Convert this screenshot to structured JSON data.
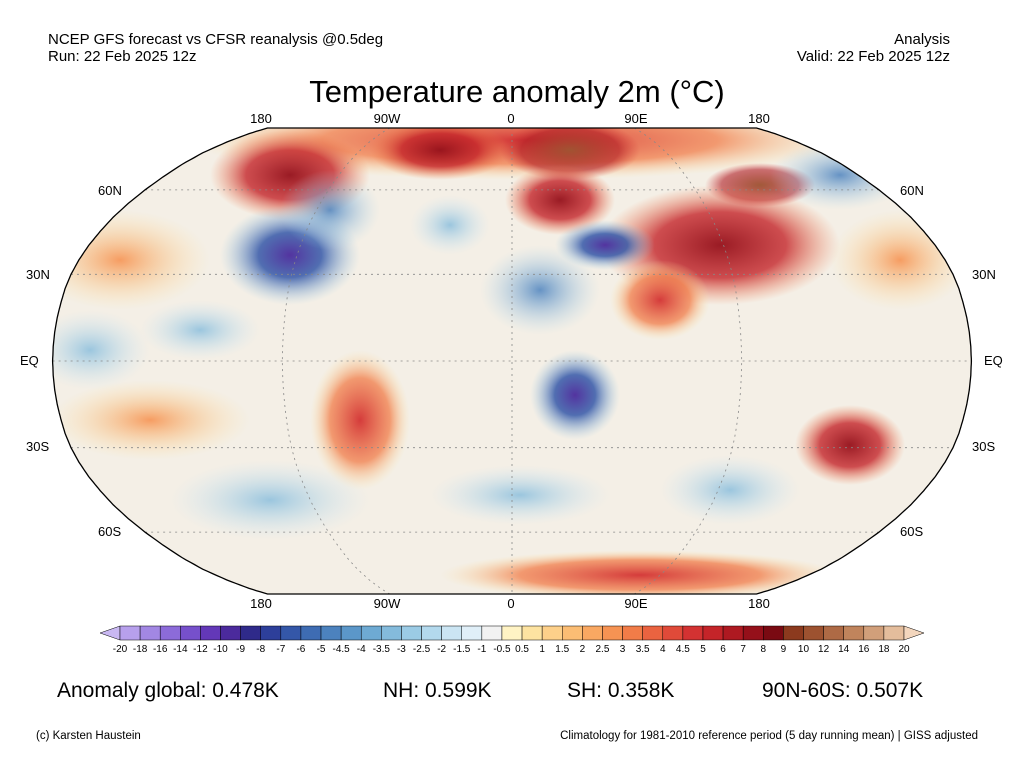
{
  "header": {
    "left_line1": "NCEP GFS forecast vs CFSR reanalysis @0.5deg",
    "left_line2": "Run: 22 Feb 2025 12z",
    "right_line1": "Analysis",
    "right_line2": "Valid: 22 Feb 2025 12z"
  },
  "map": {
    "title": "Temperature anomaly 2m (°C)",
    "projection": "Robinson",
    "lon_labels": [
      "180",
      "90W",
      "0",
      "90E",
      "180"
    ],
    "lat_labels_left": [
      "60N",
      "30N",
      "EQ",
      "30S",
      "60S"
    ],
    "lat_labels_right": [
      "60N",
      "30N",
      "EQ",
      "30S",
      "60S"
    ]
  },
  "colorbar": {
    "ticks": [
      "-20",
      "-18",
      "-16",
      "-14",
      "-12",
      "-10",
      "-9",
      "-8",
      "-7",
      "-6",
      "-5",
      "-4.5",
      "-4",
      "-3.5",
      "-3",
      "-2.5",
      "-2",
      "-1.5",
      "-1",
      "-0.5",
      "0.5",
      "1",
      "1.5",
      "2",
      "2.5",
      "3",
      "3.5",
      "4",
      "4.5",
      "5",
      "6",
      "7",
      "8",
      "9",
      "10",
      "12",
      "14",
      "16",
      "18",
      "20"
    ],
    "colors": [
      "#c9b8f2",
      "#b7a0ec",
      "#a287e3",
      "#8c6bd9",
      "#7650cb",
      "#6338b8",
      "#4b2a9c",
      "#2f2a8a",
      "#2d3f9a",
      "#3457a8",
      "#3e6cb3",
      "#4c82be",
      "#5b97c9",
      "#6eaad3",
      "#84bbdc",
      "#9bcbe5",
      "#b3d9ed",
      "#cbe5f3",
      "#e0eff8",
      "#f2f2f2",
      "#fff3c4",
      "#fde3a1",
      "#fdd08a",
      "#fbbd74",
      "#f9a862",
      "#f69353",
      "#f17c48",
      "#ea6340",
      "#e04a39",
      "#d33232",
      "#c42429",
      "#ae1921",
      "#95101a",
      "#7a0a12",
      "#8c3a1e",
      "#9d5230",
      "#ae6a45",
      "#c0845c",
      "#d19f7a",
      "#e4bd9c",
      "#f3d6bd"
    ]
  },
  "stats": {
    "global": "Anomaly global: 0.478K",
    "nh": "NH: 0.599K",
    "sh": "SH: 0.358K",
    "arctic": "90N-60S: 0.507K"
  },
  "footer": {
    "credit": "(c) Karsten Haustein",
    "note": "Climatology for 1981-2010 reference period (5 day running mean) | GISS adjusted"
  }
}
